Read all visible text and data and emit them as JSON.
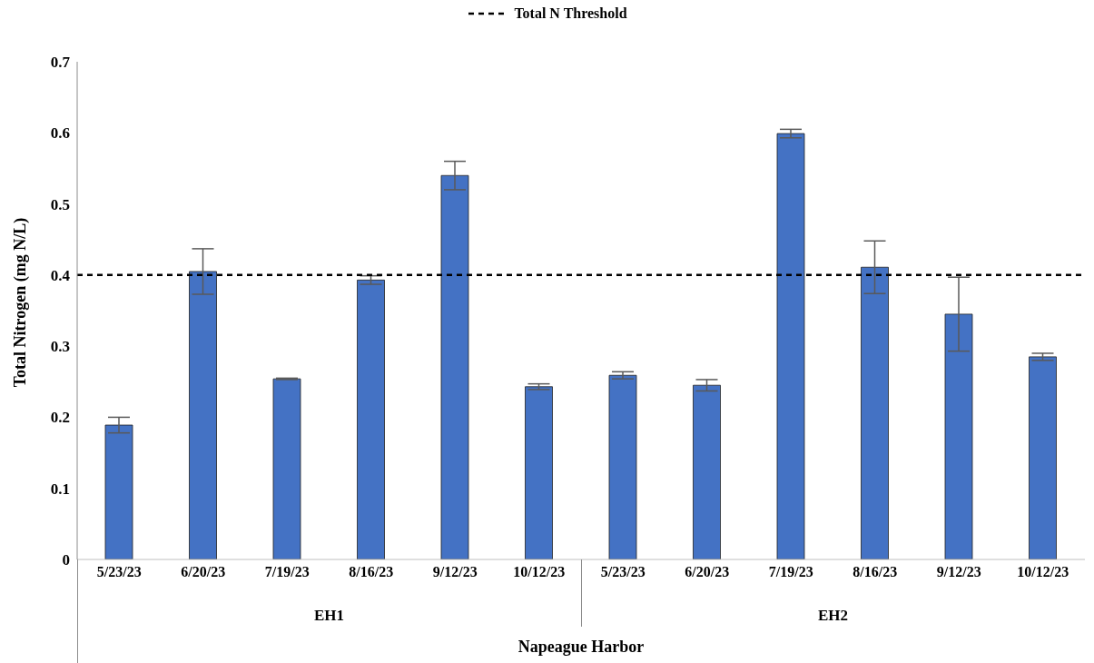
{
  "chart_data": {
    "type": "bar",
    "xlabel": "Napeague Harbor",
    "ylabel": "Total Nitrogen (mg N/L)",
    "categories": [
      "5/23/23",
      "6/20/23",
      "7/19/23",
      "8/16/23",
      "9/12/23",
      "10/12/23",
      "5/23/23",
      "6/20/23",
      "7/19/23",
      "8/16/23",
      "9/12/23",
      "10/12/23"
    ],
    "values": [
      0.189,
      0.405,
      0.254,
      0.393,
      0.54,
      0.243,
      0.259,
      0.245,
      0.599,
      0.411,
      0.345,
      0.285
    ],
    "errors": [
      0.011,
      0.032,
      0.001,
      0.006,
      0.02,
      0.004,
      0.005,
      0.008,
      0.006,
      0.037,
      0.052,
      0.005
    ],
    "color": "#4472c4",
    "ylim": [
      0,
      0.7
    ],
    "yticks": [
      0,
      0.1,
      0.2,
      0.3,
      0.4,
      0.5,
      0.6,
      0.7
    ],
    "ref_lines": [
      {
        "axis": "y",
        "value": 0.4,
        "label": "Total N Threshold",
        "color": "#000000",
        "line_style": "dashed"
      }
    ],
    "annotations": [
      "EH1",
      "EH2"
    ],
    "legend": "top"
  }
}
